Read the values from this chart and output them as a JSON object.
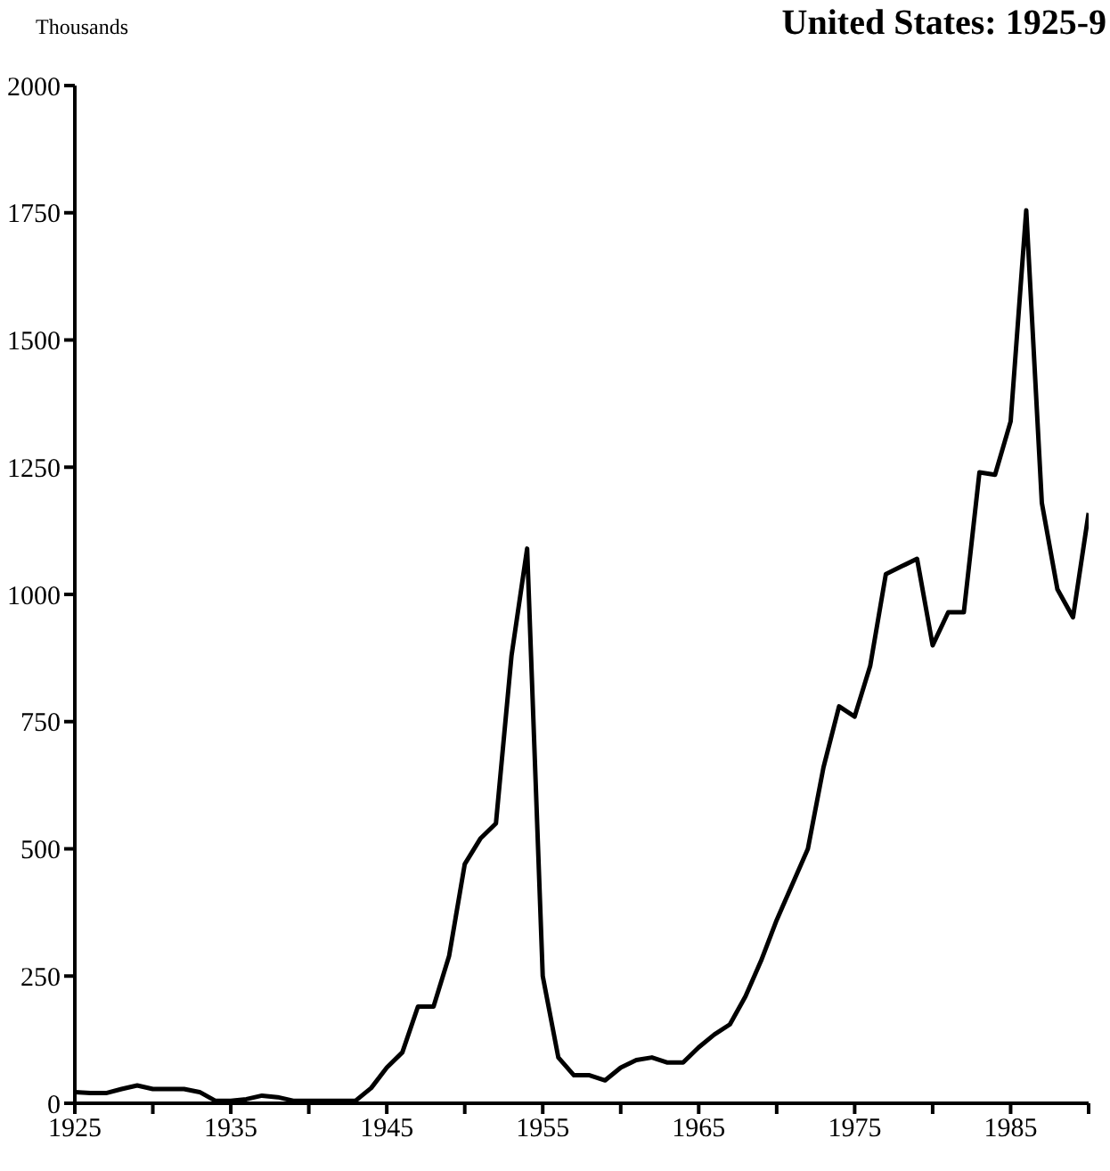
{
  "chart_data": {
    "type": "line",
    "title": "United States: 1925-9",
    "ylabel": "Thousands",
    "x": [
      1925,
      1926,
      1927,
      1928,
      1929,
      1930,
      1931,
      1932,
      1933,
      1934,
      1935,
      1936,
      1937,
      1938,
      1939,
      1940,
      1941,
      1942,
      1943,
      1944,
      1945,
      1946,
      1947,
      1948,
      1949,
      1950,
      1951,
      1952,
      1953,
      1954,
      1955,
      1956,
      1957,
      1958,
      1959,
      1960,
      1961,
      1962,
      1963,
      1964,
      1965,
      1966,
      1967,
      1968,
      1969,
      1970,
      1971,
      1972,
      1973,
      1974,
      1975,
      1976,
      1977,
      1978,
      1979,
      1980,
      1981,
      1982,
      1983,
      1984,
      1985,
      1986,
      1987,
      1988,
      1989,
      1990
    ],
    "values": [
      22,
      20,
      20,
      28,
      35,
      28,
      28,
      28,
      22,
      5,
      5,
      8,
      15,
      12,
      5,
      5,
      5,
      5,
      5,
      30,
      70,
      100,
      190,
      190,
      290,
      470,
      520,
      550,
      880,
      1090,
      250,
      90,
      55,
      55,
      45,
      70,
      85,
      90,
      80,
      80,
      110,
      135,
      155,
      210,
      280,
      360,
      430,
      500,
      660,
      780,
      760,
      860,
      1040,
      1055,
      1070,
      900,
      965,
      965,
      1240,
      1235,
      1340,
      1755,
      1180,
      1010,
      955,
      1160
    ],
    "color": "#000000",
    "xlim": [
      1925,
      1990
    ],
    "xticks": [
      1925,
      {
        "value": 1930,
        "label": null
      },
      1935,
      {
        "value": 1940,
        "label": null
      },
      1945,
      {
        "value": 1950,
        "label": null
      },
      1955,
      {
        "value": 1960,
        "label": null
      },
      1965,
      {
        "value": 1970,
        "label": null
      },
      1975,
      {
        "value": 1980,
        "label": null
      },
      1985,
      {
        "value": 1990,
        "label": null
      }
    ],
    "ylim": [
      0,
      2000
    ],
    "yticks": [
      0,
      250,
      500,
      750,
      1000,
      1250,
      1500,
      1750,
      2000
    ],
    "grid": false,
    "marker": "none",
    "line_style": "solid"
  }
}
